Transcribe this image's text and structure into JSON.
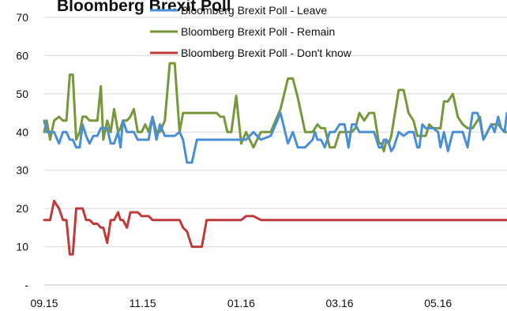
{
  "chart_data": {
    "type": "line",
    "title": "Bloomberg Brexit Poll",
    "xlabel": "",
    "ylabel": "",
    "x_tick_labels": [
      "09.15",
      "11.15",
      "01.16",
      "03.16",
      "05.16"
    ],
    "y_tick_labels": [
      "-",
      "10",
      "20",
      "30",
      "40",
      "50",
      "60",
      "70"
    ],
    "ylim": [
      0,
      70
    ],
    "x_range_months": [
      0,
      9.4
    ],
    "grid": "horizontal",
    "legend_placement": "top-center",
    "colors": {
      "leave": "#4a8fd4",
      "remain": "#77973a",
      "dont_know": "#c0393b"
    },
    "series": [
      {
        "name": "Bloomberg Brexit Poll - Leave",
        "color": "#4a8fd4",
        "x": [
          0,
          0.05,
          0.12,
          0.2,
          0.3,
          0.38,
          0.45,
          0.52,
          0.58,
          0.65,
          0.72,
          0.78,
          0.85,
          0.92,
          1.0,
          1.08,
          1.15,
          1.2,
          1.28,
          1.35,
          1.42,
          1.5,
          1.55,
          1.6,
          1.68,
          1.75,
          1.82,
          1.9,
          1.98,
          2.05,
          2.12,
          2.2,
          2.28,
          2.35,
          2.45,
          2.55,
          2.65,
          2.75,
          2.82,
          2.9,
          3.0,
          3.1,
          3.2,
          3.3,
          3.4,
          3.5,
          3.58,
          3.65,
          3.72,
          3.8,
          3.9,
          4.0,
          4.1,
          4.25,
          4.4,
          4.6,
          4.8,
          4.95,
          5.05,
          5.15,
          5.3,
          5.45,
          5.5,
          5.55,
          5.62,
          5.7,
          5.8,
          5.9,
          6.0,
          6.1,
          6.18,
          6.25,
          6.32,
          6.4,
          6.5,
          6.6,
          6.7,
          6.8,
          6.85,
          6.9,
          6.95,
          7.0,
          7.05,
          7.1,
          7.2,
          7.3,
          7.4,
          7.5,
          7.58,
          7.62,
          7.68,
          7.75,
          7.82,
          7.9,
          8.0,
          8.05,
          8.12,
          8.2,
          8.3,
          8.4,
          8.5,
          8.6,
          8.7,
          8.8,
          8.85,
          8.92,
          9.0,
          9.08,
          9.15,
          9.22,
          9.28,
          9.35,
          9.4
        ],
        "values": [
          43,
          40,
          40,
          40,
          37,
          40,
          40,
          38,
          38,
          36,
          36,
          42,
          39,
          37,
          39,
          39,
          41,
          41,
          41,
          37,
          37,
          40,
          36,
          43,
          40,
          40,
          40,
          38,
          38,
          38,
          38,
          44,
          38,
          42,
          39,
          39,
          39,
          40,
          38,
          32,
          32,
          38,
          38,
          38,
          38,
          38,
          38,
          38,
          38,
          38,
          38,
          38,
          38,
          40,
          38,
          39,
          45,
          37,
          40,
          36,
          36,
          38,
          40,
          38,
          38,
          36,
          40,
          40,
          42,
          42,
          36,
          42,
          42,
          40,
          40,
          40,
          40,
          36,
          36,
          38,
          38,
          37,
          35,
          36,
          40,
          39,
          40,
          40,
          36,
          36,
          42,
          41,
          41,
          41,
          40,
          36,
          40,
          35,
          40,
          40,
          40,
          36,
          45,
          45,
          43,
          38,
          40,
          42,
          40,
          44,
          41,
          40,
          45
        ]
      },
      {
        "name": "Bloomberg Brexit Poll - Remain",
        "color": "#77973a",
        "x": [
          0,
          0.05,
          0.12,
          0.2,
          0.3,
          0.38,
          0.45,
          0.52,
          0.58,
          0.65,
          0.72,
          0.78,
          0.85,
          0.92,
          1.0,
          1.08,
          1.15,
          1.2,
          1.28,
          1.35,
          1.42,
          1.5,
          1.55,
          1.6,
          1.68,
          1.75,
          1.82,
          1.9,
          1.98,
          2.05,
          2.12,
          2.2,
          2.28,
          2.35,
          2.45,
          2.55,
          2.65,
          2.75,
          2.82,
          2.9,
          3.0,
          3.1,
          3.2,
          3.3,
          3.4,
          3.5,
          3.58,
          3.65,
          3.72,
          3.8,
          3.9,
          4.0,
          4.1,
          4.25,
          4.4,
          4.6,
          4.8,
          4.95,
          5.05,
          5.15,
          5.3,
          5.45,
          5.5,
          5.55,
          5.62,
          5.7,
          5.8,
          5.9,
          6.0,
          6.1,
          6.18,
          6.25,
          6.32,
          6.4,
          6.5,
          6.6,
          6.7,
          6.8,
          6.85,
          6.9,
          6.95,
          7.0,
          7.05,
          7.1,
          7.2,
          7.3,
          7.4,
          7.5,
          7.58,
          7.62,
          7.68,
          7.75,
          7.82,
          7.9,
          8.0,
          8.05,
          8.12,
          8.2,
          8.3,
          8.4,
          8.5,
          8.6,
          8.7,
          8.8,
          8.85,
          8.92,
          9.0,
          9.08,
          9.15,
          9.22,
          9.28,
          9.35,
          9.4
        ],
        "values": [
          40,
          43,
          38,
          43,
          44,
          43,
          43,
          55,
          55,
          38,
          40,
          44,
          44,
          43,
          43,
          43,
          52,
          38,
          43,
          40,
          46,
          40,
          41,
          43,
          43,
          44,
          46,
          40,
          40,
          42,
          40,
          44,
          40,
          40,
          43,
          58,
          58,
          40,
          45,
          45,
          45,
          45,
          45,
          45,
          45,
          45,
          44,
          44,
          40,
          40,
          49.5,
          37,
          40,
          36,
          40,
          40,
          46,
          54,
          54,
          49,
          40,
          40,
          41,
          42,
          41,
          41,
          36,
          36,
          40,
          40,
          40,
          40,
          41,
          45,
          43,
          45,
          45,
          37,
          37,
          35,
          38,
          37,
          39,
          43,
          51,
          51,
          45,
          43,
          39,
          39,
          39,
          39,
          42,
          41,
          41,
          41,
          48,
          48,
          50,
          44,
          42,
          41,
          41,
          43,
          44,
          38,
          40,
          42,
          42,
          42,
          41,
          40,
          40
        ]
      },
      {
        "name": "Bloomberg Brexit Poll - Don't know",
        "color": "#c0393b",
        "x": [
          0,
          0.05,
          0.12,
          0.2,
          0.3,
          0.38,
          0.45,
          0.52,
          0.58,
          0.65,
          0.72,
          0.78,
          0.85,
          0.92,
          1.0,
          1.08,
          1.15,
          1.2,
          1.28,
          1.35,
          1.42,
          1.5,
          1.55,
          1.6,
          1.68,
          1.75,
          1.82,
          1.9,
          1.98,
          2.05,
          2.12,
          2.2,
          2.28,
          2.35,
          2.45,
          2.55,
          2.65,
          2.75,
          2.82,
          2.9,
          3.0,
          3.1,
          3.2,
          3.3,
          3.4,
          3.5,
          3.58,
          3.65,
          3.72,
          3.8,
          3.9,
          4.0,
          4.1,
          4.25,
          4.4,
          4.6,
          4.8,
          4.95,
          5.05,
          5.15,
          5.3,
          5.45,
          5.5,
          5.55,
          5.62,
          5.7,
          5.8,
          5.9,
          6.0,
          6.1,
          6.18,
          6.25,
          6.32,
          6.4,
          6.5,
          6.6,
          6.7,
          6.8,
          6.85,
          6.9,
          6.95,
          7.0,
          7.05,
          7.1,
          7.2,
          7.3,
          7.4,
          7.5,
          7.58,
          7.62,
          7.68,
          7.75,
          7.82,
          7.9,
          8.0,
          8.05,
          8.12,
          8.2,
          8.3,
          8.4,
          8.5,
          8.6,
          8.7,
          8.8,
          8.85,
          8.92,
          9.0,
          9.08,
          9.15,
          9.22,
          9.28,
          9.35,
          9.4
        ],
        "values": [
          17,
          17,
          17,
          22,
          20,
          17,
          17,
          8,
          8,
          20,
          20,
          20,
          17,
          17,
          16,
          16,
          15,
          15,
          11,
          17,
          17,
          19,
          17,
          17,
          15,
          19,
          19,
          19,
          18,
          18,
          18,
          17,
          17,
          17,
          17,
          17,
          17,
          17,
          15,
          14,
          10,
          10,
          10,
          17,
          17,
          17,
          17,
          17,
          17,
          17,
          17,
          17,
          18,
          18,
          17,
          17,
          17,
          17,
          17,
          17,
          17,
          17,
          17,
          17,
          17,
          17,
          17,
          17,
          17,
          17,
          17,
          17,
          17,
          17,
          17,
          17,
          17,
          17,
          17,
          17,
          17,
          17,
          17,
          17,
          17,
          17,
          17,
          17,
          17,
          17,
          17,
          17,
          17,
          17,
          17,
          17,
          17,
          17,
          17,
          17,
          17,
          17,
          17,
          17,
          17,
          17,
          17,
          17,
          17,
          17,
          17,
          17,
          17
        ]
      }
    ]
  }
}
